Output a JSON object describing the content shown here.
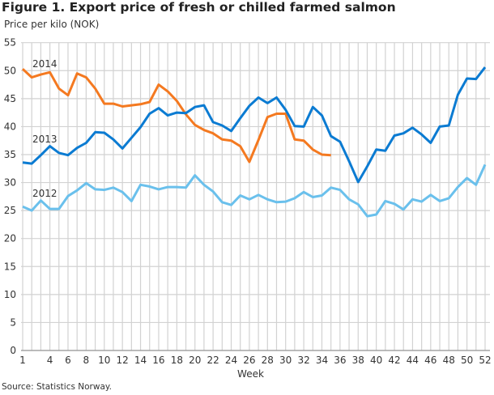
{
  "chart_data": {
    "type": "line",
    "title": "Figure 1. Export price of fresh or chilled farmed salmon",
    "ylabel": "Price per kilo (NOK)",
    "xlabel": "Week",
    "source": "Source: Statistics Norway.",
    "ylim": [
      0,
      55
    ],
    "yticks": [
      0,
      5,
      10,
      15,
      20,
      25,
      30,
      35,
      40,
      45,
      50,
      55
    ],
    "xlim": [
      1,
      52
    ],
    "xticks": [
      1,
      4,
      6,
      8,
      10,
      12,
      14,
      16,
      18,
      20,
      22,
      24,
      26,
      28,
      30,
      32,
      34,
      36,
      38,
      40,
      42,
      44,
      46,
      48,
      50,
      52
    ],
    "grid": true,
    "series": [
      {
        "name": "2014",
        "color": "#f47920",
        "values": [
          50.3,
          48.8,
          49.3,
          49.7,
          46.8,
          45.6,
          49.5,
          48.8,
          46.8,
          44.1,
          44.1,
          43.6,
          43.8,
          44.0,
          44.4,
          47.5,
          46.3,
          44.6,
          42.2,
          40.3,
          39.4,
          38.8,
          37.7,
          37.5,
          36.5,
          33.7,
          37.6,
          41.7,
          42.3,
          42.3,
          37.7,
          37.5,
          35.9,
          35.0,
          34.9
        ]
      },
      {
        "name": "2013",
        "color": "#0b7bd2",
        "values": [
          33.6,
          33.4,
          34.9,
          36.5,
          35.3,
          34.9,
          36.2,
          37.1,
          39.0,
          38.9,
          37.7,
          36.1,
          38.0,
          39.9,
          42.3,
          43.3,
          42.0,
          42.5,
          42.4,
          43.5,
          43.8,
          40.8,
          40.2,
          39.2,
          41.5,
          43.7,
          45.2,
          44.2,
          45.2,
          43.0,
          40.1,
          40.0,
          43.5,
          42.0,
          38.3,
          37.3,
          33.8,
          30.1,
          32.9,
          35.9,
          35.7,
          38.4,
          38.8,
          39.8,
          38.6,
          37.1,
          40.0,
          40.2,
          45.7,
          48.6,
          48.5,
          50.6
        ]
      },
      {
        "name": "2012",
        "color": "#6ac0ec",
        "values": [
          25.7,
          25.0,
          26.8,
          25.3,
          25.3,
          27.6,
          28.6,
          29.9,
          28.8,
          28.7,
          29.1,
          28.3,
          26.7,
          29.6,
          29.3,
          28.8,
          29.2,
          29.2,
          29.1,
          31.3,
          29.6,
          28.4,
          26.5,
          26.0,
          27.7,
          27.0,
          27.8,
          27.0,
          26.5,
          26.6,
          27.2,
          28.3,
          27.4,
          27.7,
          29.1,
          28.7,
          27.0,
          26.1,
          24.0,
          24.3,
          26.7,
          26.2,
          25.2,
          27.0,
          26.6,
          27.8,
          26.7,
          27.2,
          29.2,
          30.8,
          29.6,
          33.2
        ]
      }
    ]
  }
}
